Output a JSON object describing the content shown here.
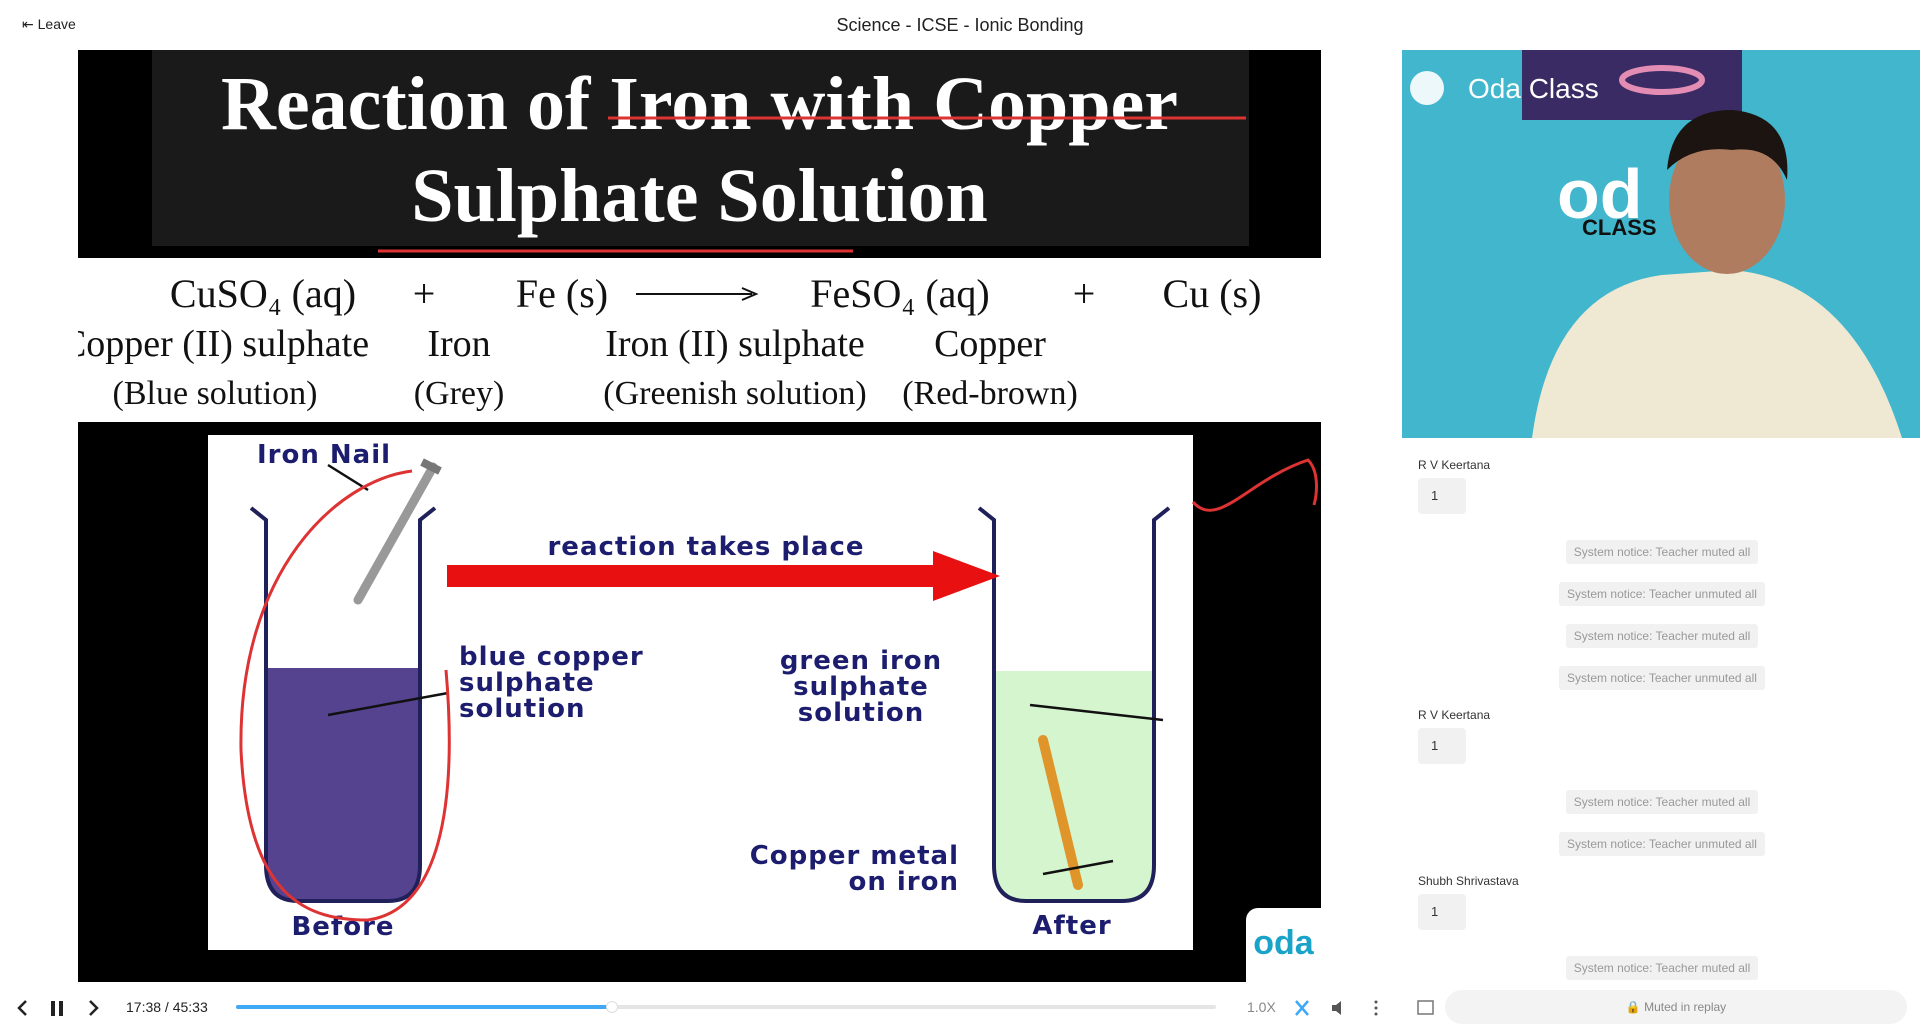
{
  "header": {
    "leave": "Leave",
    "title": "Science - ICSE - Ionic Bonding"
  },
  "slide": {
    "title_lines": [
      "Reaction of Iron with Copper",
      "Sulphate Solution"
    ],
    "equation": {
      "formulas": [
        "CuSO₄ (aq)",
        "+",
        "Fe (s)",
        "FeSO₄ (aq)",
        "+",
        "Cu (s)"
      ],
      "names": [
        "Copper (II) sulphate",
        "Iron",
        "Iron (II) sulphate",
        "Copper"
      ],
      "states": [
        "(Blue solution)",
        "(Grey)",
        "(Greenish solution)",
        "(Red-brown)"
      ]
    },
    "diagram": {
      "iron_nail": "Iron Nail",
      "arrow_label": "reaction takes place",
      "left_label": [
        "blue copper",
        "sulphate",
        "solution"
      ],
      "right_label": [
        "green iron",
        "sulphate",
        "solution"
      ],
      "copper_label": [
        "Copper metal",
        "on iron"
      ],
      "before": "Before",
      "after": "After"
    },
    "logo": "oda"
  },
  "video": {
    "brand": "Oda Class",
    "wall_top": "od",
    "wall_bottom": "CLASS"
  },
  "chat": {
    "messages": [
      {
        "name": "R V Keertana",
        "text": "1"
      },
      {
        "notice": "System notice: Teacher muted all"
      },
      {
        "notice": "System notice: Teacher unmuted all"
      },
      {
        "notice": "System notice: Teacher muted all"
      },
      {
        "notice": "System notice: Teacher unmuted all"
      },
      {
        "name": "R V Keertana",
        "text": "1"
      },
      {
        "notice": "System notice: Teacher muted all"
      },
      {
        "notice": "System notice: Teacher unmuted all"
      },
      {
        "name": "Shubh Shrivastava",
        "text": "1"
      },
      {
        "notice": "System notice: Teacher muted all"
      }
    ]
  },
  "player": {
    "time": "17:38 / 45:33",
    "speed": "1.0X",
    "chat_input": "Muted in replay"
  }
}
